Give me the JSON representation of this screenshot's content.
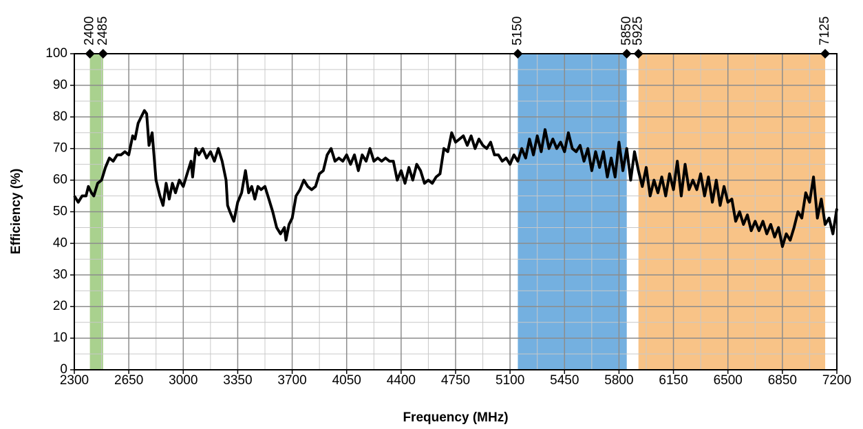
{
  "chart_data": {
    "type": "line",
    "xlabel": "Frequency (MHz)",
    "ylabel": "Efficiency (%)",
    "xlim": [
      2300,
      7200
    ],
    "xticks": [
      2300,
      2650,
      3000,
      3350,
      3700,
      4050,
      4400,
      4750,
      5100,
      5450,
      5800,
      6150,
      6500,
      6850,
      7200
    ],
    "ylim": [
      0,
      100
    ],
    "yticks": [
      0,
      10,
      20,
      30,
      40,
      50,
      60,
      70,
      80,
      90,
      100
    ],
    "grid": true,
    "minor_grid": true,
    "color": "#000000",
    "bands": [
      {
        "start": 2400,
        "end": 2485,
        "color": "#a9d18e"
      },
      {
        "start": 5150,
        "end": 5850,
        "color": "#74b0e0"
      },
      {
        "start": 5925,
        "end": 7125,
        "color": "#f8c387"
      }
    ],
    "x": [
      2300,
      2325,
      2350,
      2375,
      2390,
      2410,
      2425,
      2450,
      2475,
      2500,
      2525,
      2550,
      2575,
      2600,
      2625,
      2650,
      2675,
      2690,
      2710,
      2730,
      2750,
      2765,
      2780,
      2800,
      2825,
      2850,
      2870,
      2890,
      2910,
      2930,
      2950,
      2975,
      3000,
      3025,
      3050,
      3060,
      3080,
      3100,
      3125,
      3150,
      3175,
      3200,
      3225,
      3250,
      3275,
      3285,
      3300,
      3325,
      3350,
      3375,
      3400,
      3420,
      3440,
      3460,
      3480,
      3500,
      3525,
      3550,
      3575,
      3600,
      3625,
      3650,
      3660,
      3680,
      3700,
      3725,
      3750,
      3775,
      3800,
      3825,
      3850,
      3875,
      3900,
      3925,
      3950,
      3975,
      4000,
      4025,
      4050,
      4075,
      4100,
      4125,
      4150,
      4175,
      4200,
      4225,
      4250,
      4275,
      4300,
      4325,
      4350,
      4375,
      4400,
      4425,
      4450,
      4475,
      4500,
      4525,
      4550,
      4575,
      4600,
      4625,
      4650,
      4675,
      4700,
      4725,
      4750,
      4775,
      4800,
      4825,
      4850,
      4875,
      4900,
      4925,
      4950,
      4975,
      5000,
      5025,
      5050,
      5075,
      5100,
      5125,
      5150,
      5175,
      5200,
      5225,
      5250,
      5275,
      5300,
      5325,
      5350,
      5375,
      5400,
      5425,
      5450,
      5475,
      5500,
      5525,
      5550,
      5575,
      5600,
      5625,
      5650,
      5675,
      5700,
      5725,
      5750,
      5775,
      5800,
      5825,
      5850,
      5875,
      5900,
      5925,
      5950,
      5975,
      6000,
      6025,
      6050,
      6075,
      6100,
      6125,
      6150,
      6175,
      6200,
      6225,
      6250,
      6275,
      6300,
      6325,
      6350,
      6375,
      6400,
      6425,
      6450,
      6475,
      6500,
      6525,
      6550,
      6575,
      6600,
      6625,
      6650,
      6675,
      6700,
      6725,
      6750,
      6775,
      6800,
      6825,
      6850,
      6875,
      6900,
      6925,
      6950,
      6975,
      7000,
      7025,
      7050,
      7075,
      7100,
      7125,
      7150,
      7175,
      7200
    ],
    "values": [
      55,
      53,
      55,
      55,
      58,
      56,
      55,
      59,
      60,
      64,
      67,
      66,
      68,
      68,
      69,
      68,
      74,
      73,
      78,
      80,
      82,
      81,
      71,
      75,
      60,
      55,
      52,
      59,
      54,
      59,
      56,
      60,
      58,
      62,
      66,
      61,
      70,
      68,
      70,
      67,
      69,
      66,
      70,
      66,
      60,
      52,
      50,
      47,
      53,
      56,
      63,
      56,
      58,
      54,
      58,
      57,
      58,
      54,
      50,
      45,
      43,
      45,
      41,
      46,
      48,
      55,
      57,
      60,
      58,
      57,
      58,
      62,
      63,
      68,
      70,
      66,
      67,
      66,
      68,
      65,
      68,
      63,
      68,
      66,
      70,
      66,
      67,
      66,
      67,
      66,
      66,
      60,
      63,
      59,
      64,
      60,
      65,
      63,
      59,
      60,
      59,
      61,
      62,
      70,
      69,
      75,
      72,
      73,
      74,
      71,
      74,
      70,
      73,
      71,
      70,
      72,
      68,
      68,
      66,
      67,
      65,
      68,
      66,
      70,
      67,
      73,
      68,
      74,
      69,
      76,
      70,
      73,
      70,
      72,
      69,
      75,
      70,
      69,
      71,
      66,
      70,
      63,
      69,
      64,
      69,
      61,
      67,
      61,
      72,
      63,
      70,
      60,
      69,
      63,
      58,
      64,
      55,
      60,
      56,
      61,
      55,
      62,
      57,
      66,
      55,
      65,
      57,
      60,
      57,
      62,
      55,
      61,
      53,
      60,
      52,
      58,
      53,
      54,
      47,
      50,
      46,
      49,
      44,
      47,
      44,
      47,
      43,
      46,
      42,
      45,
      39,
      43,
      41,
      45,
      50,
      48,
      56,
      53,
      61,
      48,
      54,
      46,
      48,
      43,
      51
    ]
  }
}
